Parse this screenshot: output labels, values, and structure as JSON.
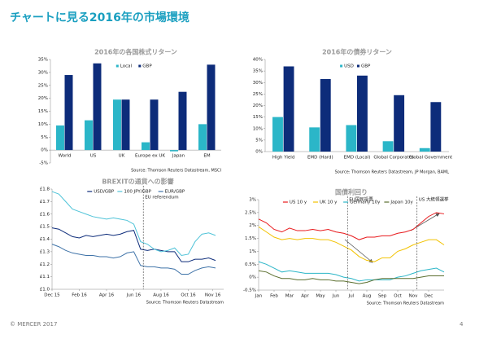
{
  "header": {
    "title": "チャートに見る2016年の市場環境"
  },
  "footer": {
    "copyright": "© MERCER 2017",
    "page": "4"
  },
  "chart_data": [
    {
      "type": "bar",
      "title": "2016年の各国株式リターン",
      "categories": [
        "World",
        "US",
        "UK",
        "Europe ex UK",
        "Japan",
        "EM"
      ],
      "series": [
        {
          "name": "Local",
          "color": "#2bb6c8",
          "values": [
            9.5,
            11.5,
            19.5,
            3,
            -0.5,
            10
          ]
        },
        {
          "name": "GBP",
          "color": "#0d2c7a",
          "values": [
            29,
            33.5,
            19.5,
            19.5,
            22.5,
            33
          ]
        }
      ],
      "ylim": [
        -5,
        35
      ],
      "yticks": [
        {
          "value": -5,
          "label": "-5%"
        },
        {
          "value": 0,
          "label": "0%"
        },
        {
          "value": 5,
          "label": "5%"
        },
        {
          "value": 10,
          "label": "10%"
        },
        {
          "value": 15,
          "label": "15%"
        },
        {
          "value": 20,
          "label": "20%"
        },
        {
          "value": 25,
          "label": "25%"
        },
        {
          "value": 30,
          "label": "30%"
        },
        {
          "value": 35,
          "label": "35%"
        }
      ],
      "source": "Source: Thomson Reuters Datastream, MSCI"
    },
    {
      "type": "bar",
      "title": "2016年の債券リターン",
      "categories": [
        "High Yield",
        "EMD (Hard)",
        "EMD (Local)",
        "Global Corporates",
        "Global Government"
      ],
      "series": [
        {
          "name": "USD",
          "color": "#2bb6c8",
          "values": [
            15,
            10.5,
            11.5,
            4.5,
            1.5
          ]
        },
        {
          "name": "GBP",
          "color": "#0d2c7a",
          "values": [
            37,
            31.5,
            33,
            24.5,
            21.5
          ]
        }
      ],
      "ylim": [
        0,
        40
      ],
      "yticks": [
        {
          "value": 0,
          "label": "0%"
        },
        {
          "value": 5,
          "label": "5%"
        },
        {
          "value": 10,
          "label": "10%"
        },
        {
          "value": 15,
          "label": "15%"
        },
        {
          "value": 20,
          "label": "20%"
        },
        {
          "value": 25,
          "label": "25%"
        },
        {
          "value": 30,
          "label": "30%"
        },
        {
          "value": 35,
          "label": "35%"
        },
        {
          "value": 40,
          "label": "40%"
        }
      ],
      "source": "Source: Thomson Reuters Datastream, JP Morgan, BAML"
    },
    {
      "type": "line",
      "title": "BREXITの通貨への影響",
      "x": [
        0,
        0.5,
        1,
        1.5,
        2,
        2.5,
        3,
        3.5,
        4,
        4.5,
        5,
        5.5,
        6,
        6.5,
        7,
        7.5,
        8,
        8.5,
        9,
        9.5,
        10,
        10.5,
        11,
        11.5,
        12
      ],
      "series": [
        {
          "name": "USD/GBP",
          "color": "#0d2c7a",
          "values": [
            1.49,
            1.48,
            1.45,
            1.42,
            1.41,
            1.43,
            1.42,
            1.43,
            1.44,
            1.43,
            1.44,
            1.46,
            1.47,
            1.32,
            1.31,
            1.32,
            1.31,
            1.3,
            1.3,
            1.22,
            1.22,
            1.24,
            1.24,
            1.25,
            1.23
          ]
        },
        {
          "name": "100 JPY/GBP",
          "color": "#4fc3d8",
          "values": [
            1.78,
            1.76,
            1.7,
            1.64,
            1.62,
            1.6,
            1.58,
            1.57,
            1.56,
            1.57,
            1.56,
            1.55,
            1.52,
            1.38,
            1.36,
            1.32,
            1.3,
            1.31,
            1.33,
            1.27,
            1.28,
            1.38,
            1.44,
            1.45,
            1.43
          ]
        },
        {
          "name": "EUR/GBP",
          "color": "#3f73a8",
          "values": [
            1.36,
            1.34,
            1.31,
            1.29,
            1.28,
            1.27,
            1.27,
            1.26,
            1.26,
            1.25,
            1.26,
            1.29,
            1.3,
            1.19,
            1.18,
            1.18,
            1.17,
            1.17,
            1.16,
            1.12,
            1.12,
            1.15,
            1.17,
            1.18,
            1.17
          ]
        }
      ],
      "xlim": [
        0,
        12.6
      ],
      "xticks": [
        {
          "value": 0,
          "label": "Dec 15"
        },
        {
          "value": 2,
          "label": "Feb 16"
        },
        {
          "value": 4,
          "label": "Apr 16"
        },
        {
          "value": 6,
          "label": "Jun 16"
        },
        {
          "value": 8,
          "label": "Aug 16"
        },
        {
          "value": 10,
          "label": "Oct 16"
        },
        {
          "value": 11.8,
          "label": "Nov 16"
        }
      ],
      "ylim": [
        1,
        1.8
      ],
      "yticks": [
        {
          "value": 1,
          "label": "£1.0"
        },
        {
          "value": 1.1,
          "label": "£1.1"
        },
        {
          "value": 1.2,
          "label": "£1.2"
        },
        {
          "value": 1.3,
          "label": "£1.3"
        },
        {
          "value": 1.4,
          "label": "£1.4"
        },
        {
          "value": 1.5,
          "label": "£1.5"
        },
        {
          "value": 1.6,
          "label": "£1.6"
        },
        {
          "value": 1.7,
          "label": "£1.7"
        },
        {
          "value": 1.8,
          "label": "£1.8"
        }
      ],
      "annotations": [
        {
          "text": "EU referendum",
          "x": 6.7
        }
      ],
      "source": "Source: Thomson Reuters Datastream"
    },
    {
      "type": "line",
      "title": "国債利回り",
      "x": [
        0,
        0.5,
        1,
        1.5,
        2,
        2.5,
        3,
        3.5,
        4,
        4.5,
        5,
        5.5,
        6,
        6.5,
        7,
        7.5,
        8,
        8.5,
        9,
        9.5,
        10,
        10.5,
        11,
        11.5,
        12
      ],
      "series": [
        {
          "name": "US 10 y",
          "color": "#e8191c",
          "values": [
            2.25,
            2.1,
            1.85,
            1.75,
            1.9,
            1.8,
            1.8,
            1.85,
            1.8,
            1.85,
            1.75,
            1.7,
            1.6,
            1.45,
            1.55,
            1.55,
            1.6,
            1.6,
            1.7,
            1.75,
            1.85,
            2.1,
            2.35,
            2.5,
            2.45
          ]
        },
        {
          "name": "UK 10 y",
          "color": "#f2c200",
          "values": [
            1.95,
            1.75,
            1.55,
            1.45,
            1.5,
            1.45,
            1.5,
            1.5,
            1.45,
            1.45,
            1.35,
            1.2,
            1.05,
            0.8,
            0.65,
            0.6,
            0.75,
            0.75,
            1.0,
            1.1,
            1.25,
            1.35,
            1.45,
            1.45,
            1.25
          ]
        },
        {
          "name": "Germany 10y",
          "color": "#2bb6c8",
          "values": [
            0.6,
            0.5,
            0.35,
            0.2,
            0.25,
            0.2,
            0.15,
            0.15,
            0.15,
            0.15,
            0.1,
            0.0,
            -0.05,
            -0.15,
            -0.1,
            -0.1,
            -0.1,
            -0.1,
            0.0,
            0.05,
            0.15,
            0.25,
            0.3,
            0.35,
            0.2
          ]
        },
        {
          "name": "Japan 10y",
          "color": "#5b6e2e",
          "values": [
            0.25,
            0.2,
            0.05,
            -0.05,
            -0.05,
            -0.1,
            -0.1,
            -0.05,
            -0.1,
            -0.1,
            -0.15,
            -0.15,
            -0.2,
            -0.25,
            -0.2,
            -0.1,
            -0.05,
            -0.05,
            -0.05,
            -0.05,
            -0.05,
            0.0,
            0.05,
            0.05,
            0.05
          ]
        }
      ],
      "xlim": [
        0,
        12
      ],
      "xticks": [
        {
          "value": 0,
          "label": "Jan"
        },
        {
          "value": 1,
          "label": "Feb"
        },
        {
          "value": 2,
          "label": "Mar"
        },
        {
          "value": 3,
          "label": "Apr"
        },
        {
          "value": 4,
          "label": "May"
        },
        {
          "value": 5,
          "label": "Jun"
        },
        {
          "value": 6,
          "label": "Jul"
        },
        {
          "value": 7,
          "label": "Aug"
        },
        {
          "value": 8,
          "label": "Sep"
        },
        {
          "value": 9,
          "label": "Oct"
        },
        {
          "value": 10,
          "label": "Nov"
        },
        {
          "value": 11,
          "label": "Dec"
        }
      ],
      "ylim": [
        -0.5,
        3
      ],
      "yticks": [
        {
          "value": -0.5,
          "label": "-0.5%"
        },
        {
          "value": 0,
          "label": "0%"
        },
        {
          "value": 0.5,
          "label": "0.5%"
        },
        {
          "value": 1,
          "label": "1%"
        },
        {
          "value": 1.5,
          "label": "1.5%"
        },
        {
          "value": 2,
          "label": "2%"
        },
        {
          "value": 2.5,
          "label": "2.5%"
        },
        {
          "value": 3,
          "label": "3%"
        }
      ],
      "annotations": [
        {
          "text": "EU国民投票",
          "x": 5.75
        },
        {
          "text": "US 大統領選挙",
          "x": 10.25
        }
      ],
      "source": "Source: Thomson Reuters Datastream"
    }
  ]
}
